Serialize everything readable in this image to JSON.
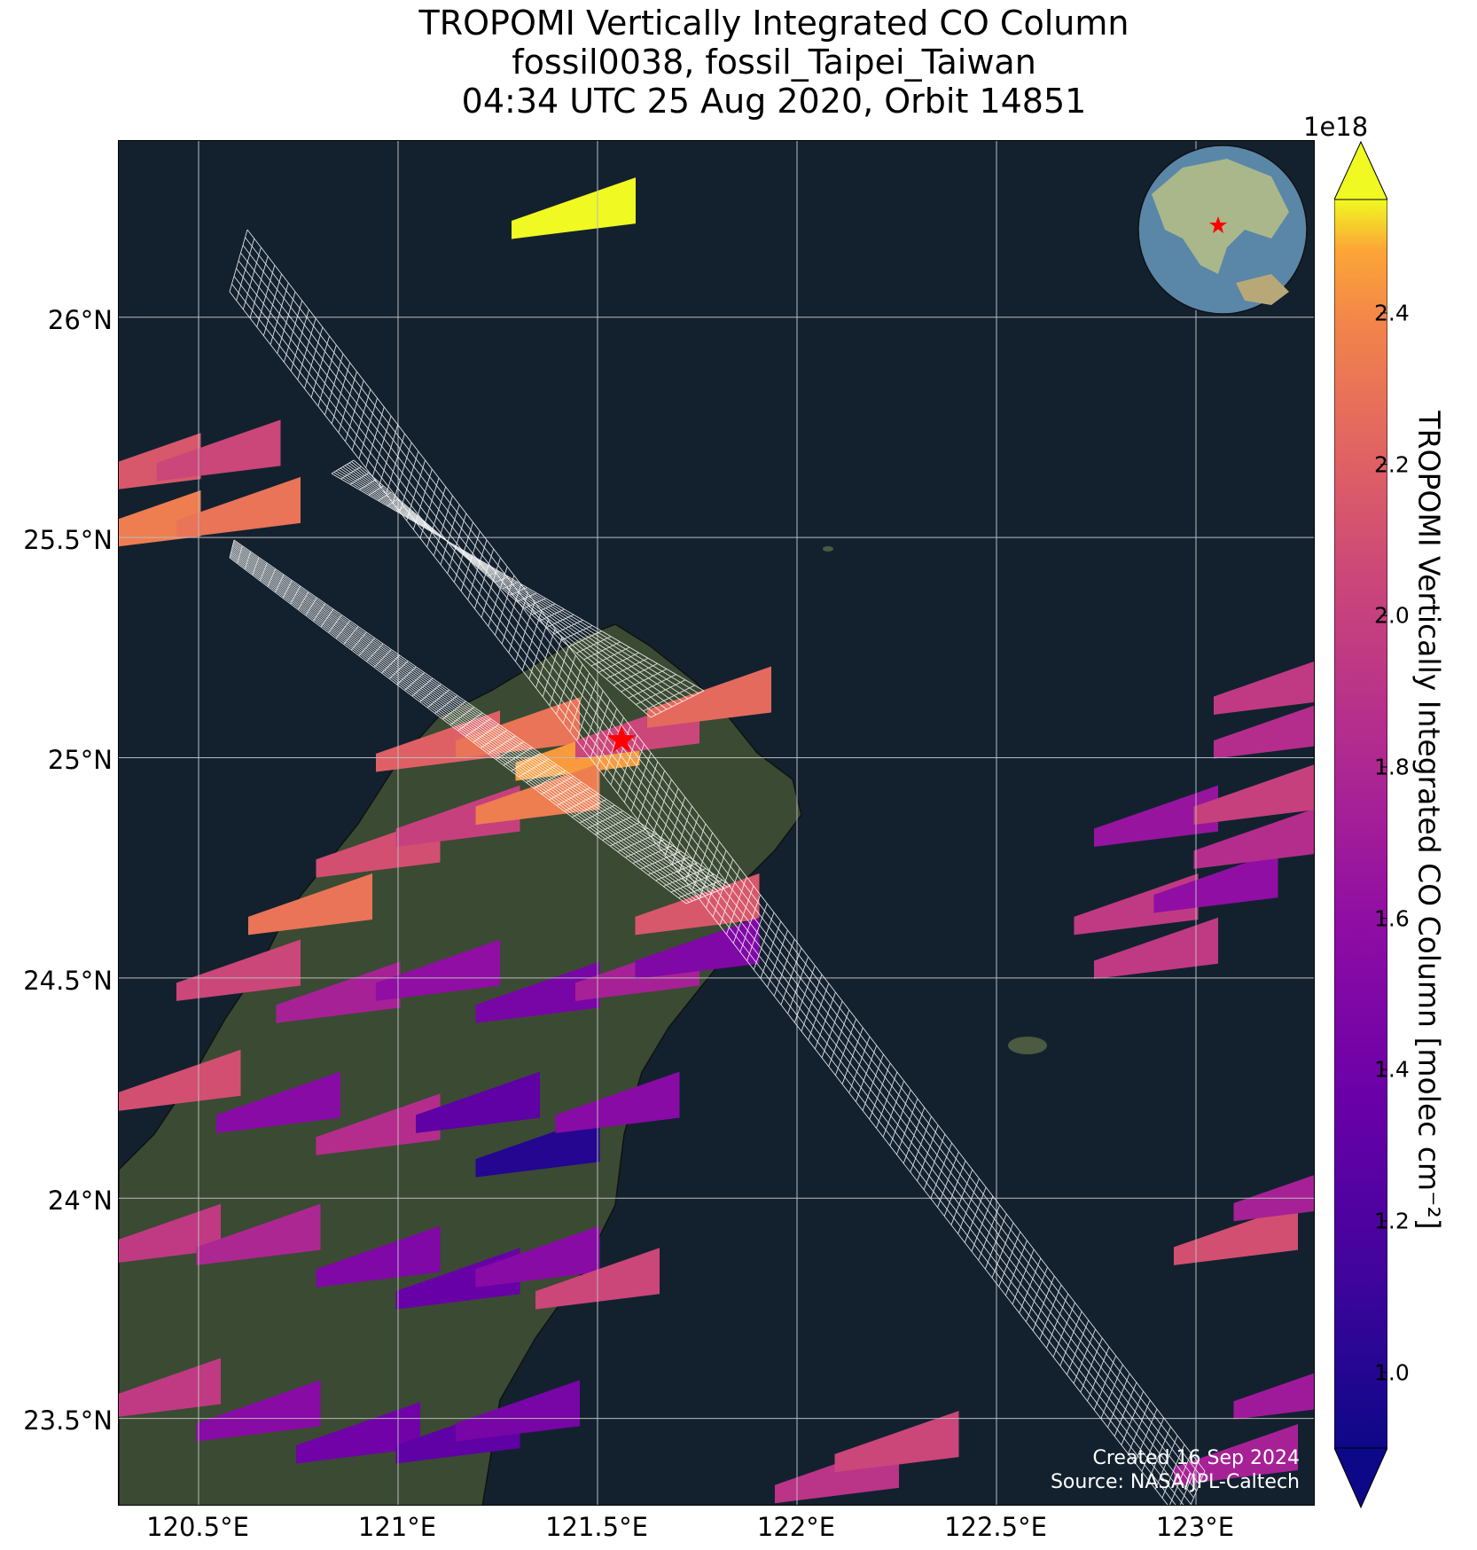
{
  "title": {
    "line1": "TROPOMI Vertically Integrated CO Column",
    "line2": "fossil0038, fossil_Taipei_Taiwan",
    "line3": "04:34 UTC 25 Aug 2020, Orbit 14851"
  },
  "map": {
    "lon_range": [
      120.3,
      123.3
    ],
    "lat_range": [
      23.3,
      26.4
    ],
    "target_marker": {
      "lon": 121.56,
      "lat": 25.04,
      "symbol": "star",
      "color": "#ff0000"
    },
    "credit_line1": "Created 16 Sep 2024",
    "credit_line2": "Source: NASA/JPL-Caltech",
    "colors": {
      "ocean": "#13212f",
      "land": "#3b4a33",
      "grid": "#bbbbbb",
      "footprint": "#ffffff"
    }
  },
  "lat_ticks": [
    "26°N",
    "25.5°N",
    "25°N",
    "24.5°N",
    "24°N",
    "23.5°N"
  ],
  "lon_ticks": [
    "120.5°E",
    "121°E",
    "121.5°E",
    "122°E",
    "122.5°E",
    "123°E"
  ],
  "colorbar": {
    "label": "TROPOMI Vertically Integrated CO Column [molec cm⁻²]",
    "exponent": "1e18",
    "ticks": [
      "1.0",
      "1.2",
      "1.4",
      "1.6",
      "1.8",
      "2.0",
      "2.2",
      "2.4"
    ],
    "tick_values": [
      1.0,
      1.2,
      1.4,
      1.6,
      1.8,
      2.0,
      2.2,
      2.4
    ],
    "range": [
      0.9,
      2.55
    ],
    "colormap": "plasma",
    "extend": "both"
  },
  "chart_data": {
    "type": "heatmap",
    "units": "molec cm^-2 (x1e18)",
    "pixels": [
      {
        "lon": 121.44,
        "lat": 26.23,
        "value": 2.55
      },
      {
        "lon": 120.35,
        "lat": 25.65,
        "value": 2.15
      },
      {
        "lon": 120.55,
        "lat": 25.68,
        "value": 2.05
      },
      {
        "lon": 120.35,
        "lat": 25.52,
        "value": 2.35
      },
      {
        "lon": 120.6,
        "lat": 25.55,
        "value": 2.3
      },
      {
        "lon": 121.1,
        "lat": 25.02,
        "value": 2.2
      },
      {
        "lon": 121.3,
        "lat": 25.05,
        "value": 2.3
      },
      {
        "lon": 121.45,
        "lat": 25.0,
        "value": 2.45
      },
      {
        "lon": 121.6,
        "lat": 25.05,
        "value": 2.05
      },
      {
        "lon": 121.78,
        "lat": 25.12,
        "value": 2.25
      },
      {
        "lon": 120.95,
        "lat": 24.78,
        "value": 2.1
      },
      {
        "lon": 121.15,
        "lat": 24.85,
        "value": 2.0
      },
      {
        "lon": 121.35,
        "lat": 24.9,
        "value": 2.35
      },
      {
        "lon": 120.78,
        "lat": 24.65,
        "value": 2.3
      },
      {
        "lon": 121.75,
        "lat": 24.65,
        "value": 2.15
      },
      {
        "lon": 120.6,
        "lat": 24.5,
        "value": 2.05
      },
      {
        "lon": 120.85,
        "lat": 24.45,
        "value": 1.75
      },
      {
        "lon": 121.1,
        "lat": 24.5,
        "value": 1.6
      },
      {
        "lon": 121.35,
        "lat": 24.45,
        "value": 1.45
      },
      {
        "lon": 121.6,
        "lat": 24.5,
        "value": 1.75
      },
      {
        "lon": 121.75,
        "lat": 24.55,
        "value": 1.5
      },
      {
        "lon": 120.45,
        "lat": 24.25,
        "value": 2.1
      },
      {
        "lon": 120.7,
        "lat": 24.2,
        "value": 1.55
      },
      {
        "lon": 120.95,
        "lat": 24.15,
        "value": 1.85
      },
      {
        "lon": 121.2,
        "lat": 24.2,
        "value": 1.3
      },
      {
        "lon": 121.35,
        "lat": 24.1,
        "value": 1.0
      },
      {
        "lon": 121.55,
        "lat": 24.2,
        "value": 1.55
      },
      {
        "lon": 120.4,
        "lat": 23.9,
        "value": 1.95
      },
      {
        "lon": 120.65,
        "lat": 23.9,
        "value": 1.8
      },
      {
        "lon": 120.95,
        "lat": 23.85,
        "value": 1.5
      },
      {
        "lon": 121.15,
        "lat": 23.8,
        "value": 1.35
      },
      {
        "lon": 121.35,
        "lat": 23.85,
        "value": 1.55
      },
      {
        "lon": 121.5,
        "lat": 23.8,
        "value": 2.05
      },
      {
        "lon": 120.4,
        "lat": 23.55,
        "value": 1.95
      },
      {
        "lon": 120.65,
        "lat": 23.5,
        "value": 1.55
      },
      {
        "lon": 120.9,
        "lat": 23.45,
        "value": 1.4
      },
      {
        "lon": 121.15,
        "lat": 23.45,
        "value": 1.3
      },
      {
        "lon": 121.3,
        "lat": 23.5,
        "value": 1.45
      },
      {
        "lon": 122.1,
        "lat": 23.36,
        "value": 1.9
      },
      {
        "lon": 122.25,
        "lat": 23.43,
        "value": 2.05
      },
      {
        "lon": 122.9,
        "lat": 24.85,
        "value": 1.65
      },
      {
        "lon": 122.85,
        "lat": 24.65,
        "value": 1.95
      },
      {
        "lon": 123.05,
        "lat": 24.7,
        "value": 1.6
      },
      {
        "lon": 122.9,
        "lat": 24.55,
        "value": 1.95
      },
      {
        "lon": 123.15,
        "lat": 24.8,
        "value": 1.85
      },
      {
        "lon": 123.2,
        "lat": 25.05,
        "value": 1.85
      },
      {
        "lon": 123.2,
        "lat": 25.15,
        "value": 1.95
      },
      {
        "lon": 123.15,
        "lat": 24.9,
        "value": 2.0
      },
      {
        "lon": 123.1,
        "lat": 23.9,
        "value": 2.1
      },
      {
        "lon": 123.25,
        "lat": 24.0,
        "value": 1.75
      },
      {
        "lon": 123.1,
        "lat": 23.4,
        "value": 1.75
      },
      {
        "lon": 123.25,
        "lat": 23.55,
        "value": 1.7
      }
    ]
  }
}
